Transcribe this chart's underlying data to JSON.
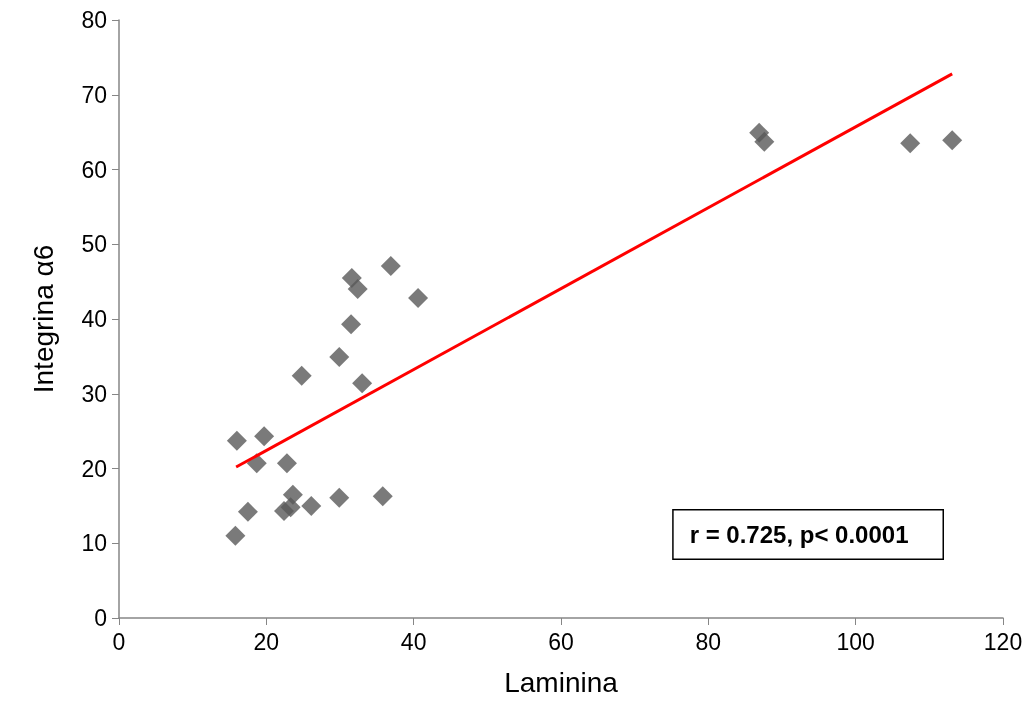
{
  "chart_data": {
    "type": "scatter",
    "xlabel": "Laminina",
    "ylabel": "Integrina α6",
    "xlim": [
      0,
      120
    ],
    "xticks": [
      0,
      20,
      40,
      60,
      80,
      100,
      120
    ],
    "ylim": [
      0,
      80
    ],
    "yticks": [
      0,
      10,
      20,
      30,
      40,
      50,
      60,
      70,
      80
    ],
    "grid": false,
    "marker": "diamond",
    "annotations": [
      "r = 0.725, p< 0.0001"
    ],
    "series": [
      {
        "color": "#595959",
        "x": [
          15.8,
          17.5,
          16.0,
          18.7,
          19.7,
          22.8,
          22.4,
          23.3,
          23.6,
          26.1,
          29.9,
          35.8,
          24.8,
          29.9,
          33.0,
          31.5,
          31.6,
          32.4,
          36.9,
          40.6,
          86.9,
          87.6,
          107.4,
          113.1
        ],
        "values": [
          11.0,
          14.2,
          23.7,
          20.7,
          24.3,
          20.7,
          14.3,
          14.8,
          16.5,
          15.0,
          16.1,
          16.3,
          32.4,
          34.9,
          31.4,
          39.3,
          45.5,
          44.0,
          47.1,
          42.8,
          64.9,
          63.7,
          63.5,
          63.9
        ]
      },
      {
        "type": "line",
        "color": "#ff0000",
        "marker": "none",
        "x": [
          15.9,
          113.1
        ],
        "values": [
          20.2,
          72.8
        ]
      }
    ]
  }
}
